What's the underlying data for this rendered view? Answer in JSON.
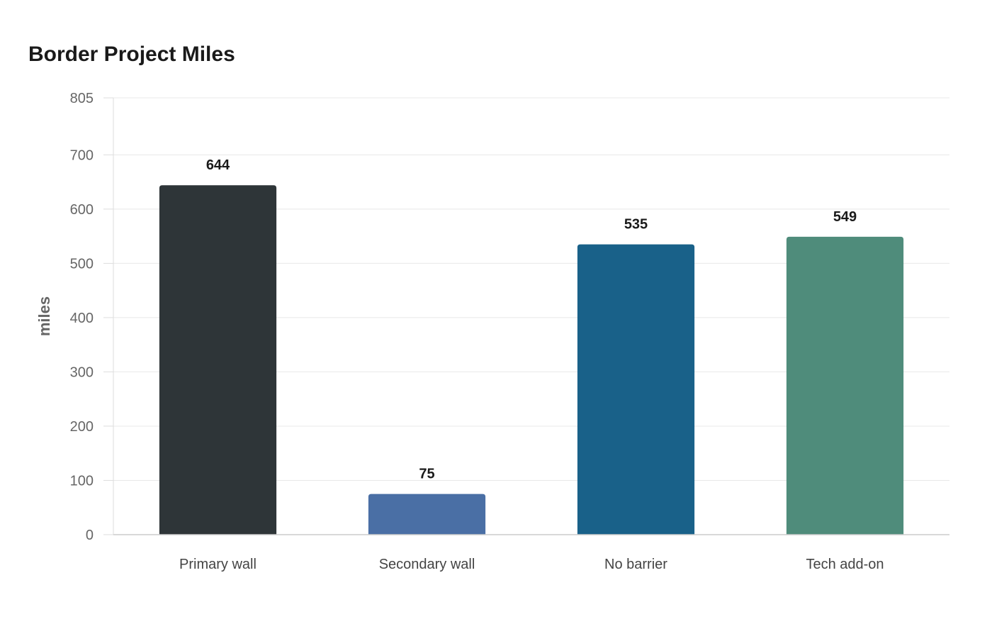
{
  "chart_data": {
    "type": "bar",
    "title": "Border Project Miles",
    "xlabel": "",
    "ylabel": "miles",
    "categories": [
      "Primary wall",
      "Secondary wall",
      "No barrier",
      "Tech add-on"
    ],
    "values": [
      644,
      75,
      535,
      549
    ],
    "colors": [
      "#2e3538",
      "#4a6fa5",
      "#196189",
      "#4f8c7b"
    ],
    "ylim": [
      0,
      805
    ],
    "yticks": [
      0,
      100,
      200,
      300,
      400,
      500,
      600,
      700,
      805
    ],
    "grid": true,
    "legend": "none",
    "data_labels": true
  }
}
